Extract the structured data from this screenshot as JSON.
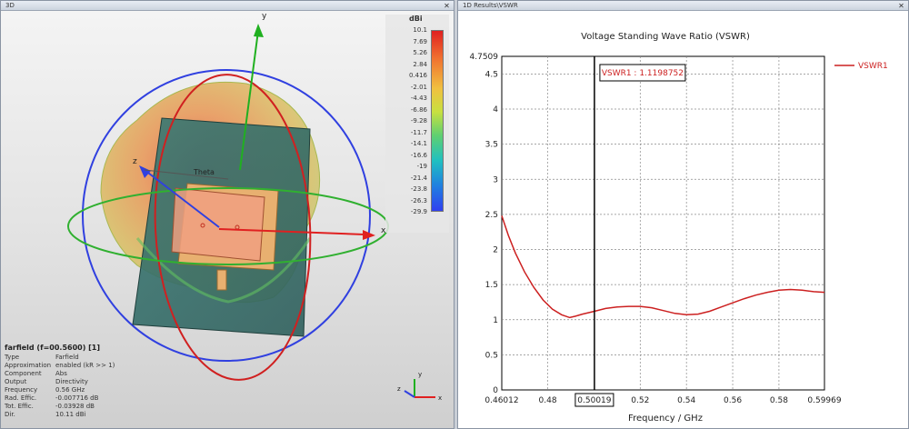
{
  "window_3d": {
    "title": "3D",
    "close_glyph": "✕",
    "colorbar": {
      "unit": "dBi",
      "ticks": [
        "10.1",
        "7.69",
        "5.26",
        "2.84",
        "0.416",
        "-2.01",
        "-4.43",
        "-6.86",
        "-9.28",
        "-11.7",
        "-14.1",
        "-16.6",
        "-19",
        "-21.4",
        "-23.8",
        "-26.3",
        "-29.9"
      ]
    },
    "axis_labels": {
      "x": "x",
      "y": "y",
      "z": "z",
      "theta": "Theta"
    },
    "triad_labels": {
      "x": "x",
      "y": "y",
      "z": "z"
    },
    "info": {
      "header": "farfield (f=00.5600) [1]",
      "rows": [
        {
          "key": "Type",
          "value": "Farfield"
        },
        {
          "key": "Approximation",
          "value": "enabled (kR >> 1)"
        },
        {
          "key": "Component",
          "value": "Abs"
        },
        {
          "key": "Output",
          "value": "Directivity"
        },
        {
          "key": "Frequency",
          "value": "0.56 GHz"
        },
        {
          "key": "Rad. Effic.",
          "value": "-0.007716 dB"
        },
        {
          "key": "Tot. Effic.",
          "value": "-0.03928 dB"
        },
        {
          "key": "Dir.",
          "value": "10.11 dBi"
        }
      ]
    }
  },
  "window_1d": {
    "title": "1D Results\\VSWR",
    "close_glyph": "✕"
  },
  "chart_data": {
    "type": "line",
    "title": "Voltage Standing Wave Ratio (VSWR)",
    "xlabel": "Frequency / GHz",
    "ylabel": "",
    "xlim": [
      0.46012,
      0.59969
    ],
    "ylim": [
      0,
      4.7509
    ],
    "x_ticks": [
      "0.46012",
      "0.48",
      "0.50019",
      "0.52",
      "0.54",
      "0.56",
      "0.58",
      "0.59969"
    ],
    "x_tick_values": [
      0.46012,
      0.48,
      0.50019,
      0.52,
      0.54,
      0.56,
      0.58,
      0.59969
    ],
    "y_ticks": [
      "0",
      "0.5",
      "1",
      "1.5",
      "2",
      "2.5",
      "3",
      "3.5",
      "4",
      "4.5",
      "4.7509"
    ],
    "y_tick_values": [
      0,
      0.5,
      1,
      1.5,
      2,
      2.5,
      3,
      3.5,
      4,
      4.5,
      4.7509
    ],
    "grid": true,
    "legend": "top-right",
    "series": [
      {
        "name": "VSWR1",
        "color": "#cc2020",
        "x": [
          0.46012,
          0.463,
          0.466,
          0.47,
          0.474,
          0.478,
          0.482,
          0.486,
          0.4895,
          0.492,
          0.495,
          0.50019,
          0.505,
          0.51,
          0.515,
          0.52,
          0.525,
          0.53,
          0.535,
          0.54,
          0.545,
          0.55,
          0.555,
          0.56,
          0.565,
          0.57,
          0.575,
          0.58,
          0.585,
          0.59,
          0.595,
          0.59969
        ],
        "y": [
          2.48,
          2.2,
          1.95,
          1.68,
          1.46,
          1.28,
          1.15,
          1.07,
          1.03,
          1.05,
          1.08,
          1.12,
          1.16,
          1.18,
          1.19,
          1.19,
          1.17,
          1.13,
          1.09,
          1.07,
          1.08,
          1.12,
          1.18,
          1.24,
          1.3,
          1.35,
          1.39,
          1.42,
          1.43,
          1.42,
          1.4,
          1.39
        ]
      }
    ],
    "marker": {
      "x": 0.50019,
      "label": "VSWR1 : 1.1198752"
    }
  }
}
